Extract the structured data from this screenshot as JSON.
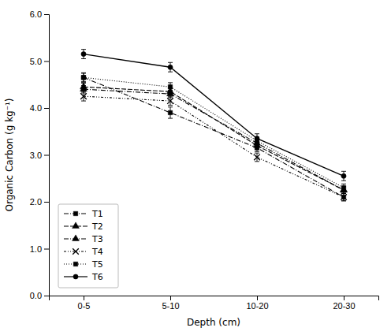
{
  "chart_data": {
    "type": "line",
    "xlabel": "Depth (cm)",
    "ylabel": "Organic Carbon (g kg⁻¹)",
    "categories": [
      "0-5",
      "5-10",
      "10-20",
      "20-30"
    ],
    "series": [
      {
        "name": "T1",
        "color": "#000000",
        "line_style": "dash-dot",
        "marker": "square",
        "values": [
          4.65,
          3.9,
          3.15,
          2.1
        ],
        "errors": [
          0.1,
          0.12,
          0.08,
          0.08
        ]
      },
      {
        "name": "T2",
        "color": "#000000",
        "line_style": "dashed",
        "marker": "triangle-up",
        "values": [
          4.45,
          4.35,
          3.2,
          2.25
        ],
        "errors": [
          0.08,
          0.08,
          0.08,
          0.07
        ]
      },
      {
        "name": "T3",
        "color": "#000000",
        "line_style": "dash-dot",
        "marker": "triangle-up",
        "values": [
          4.4,
          4.3,
          3.25,
          2.25
        ],
        "errors": [
          0.08,
          0.08,
          0.07,
          0.07
        ]
      },
      {
        "name": "T4",
        "color": "#000000",
        "line_style": "dash-dot-dot",
        "marker": "x",
        "values": [
          4.25,
          4.15,
          2.95,
          2.1
        ],
        "errors": [
          0.1,
          0.09,
          0.09,
          0.08
        ]
      },
      {
        "name": "T5",
        "color": "#000000",
        "line_style": "dotted",
        "marker": "square",
        "values": [
          4.65,
          4.45,
          3.3,
          2.3
        ],
        "errors": [
          0.09,
          0.09,
          0.08,
          0.08
        ]
      },
      {
        "name": "T6",
        "color": "#000000",
        "line_style": "solid",
        "marker": "circle",
        "values": [
          5.15,
          4.87,
          3.35,
          2.55
        ],
        "errors": [
          0.1,
          0.1,
          0.1,
          0.1
        ]
      }
    ],
    "ylim": [
      0.0,
      6.0
    ],
    "yticks": [
      {
        "value": 0.0,
        "label": "0.0"
      },
      {
        "value": 1.0,
        "label": "1.0"
      },
      {
        "value": 2.0,
        "label": "2.0"
      },
      {
        "value": 3.0,
        "label": "3.0"
      },
      {
        "value": 4.0,
        "label": "4.0"
      },
      {
        "value": 5.0,
        "label": "5.0"
      },
      {
        "value": 6.0,
        "label": "6.0"
      }
    ],
    "grid": false,
    "legend": "lower left"
  }
}
